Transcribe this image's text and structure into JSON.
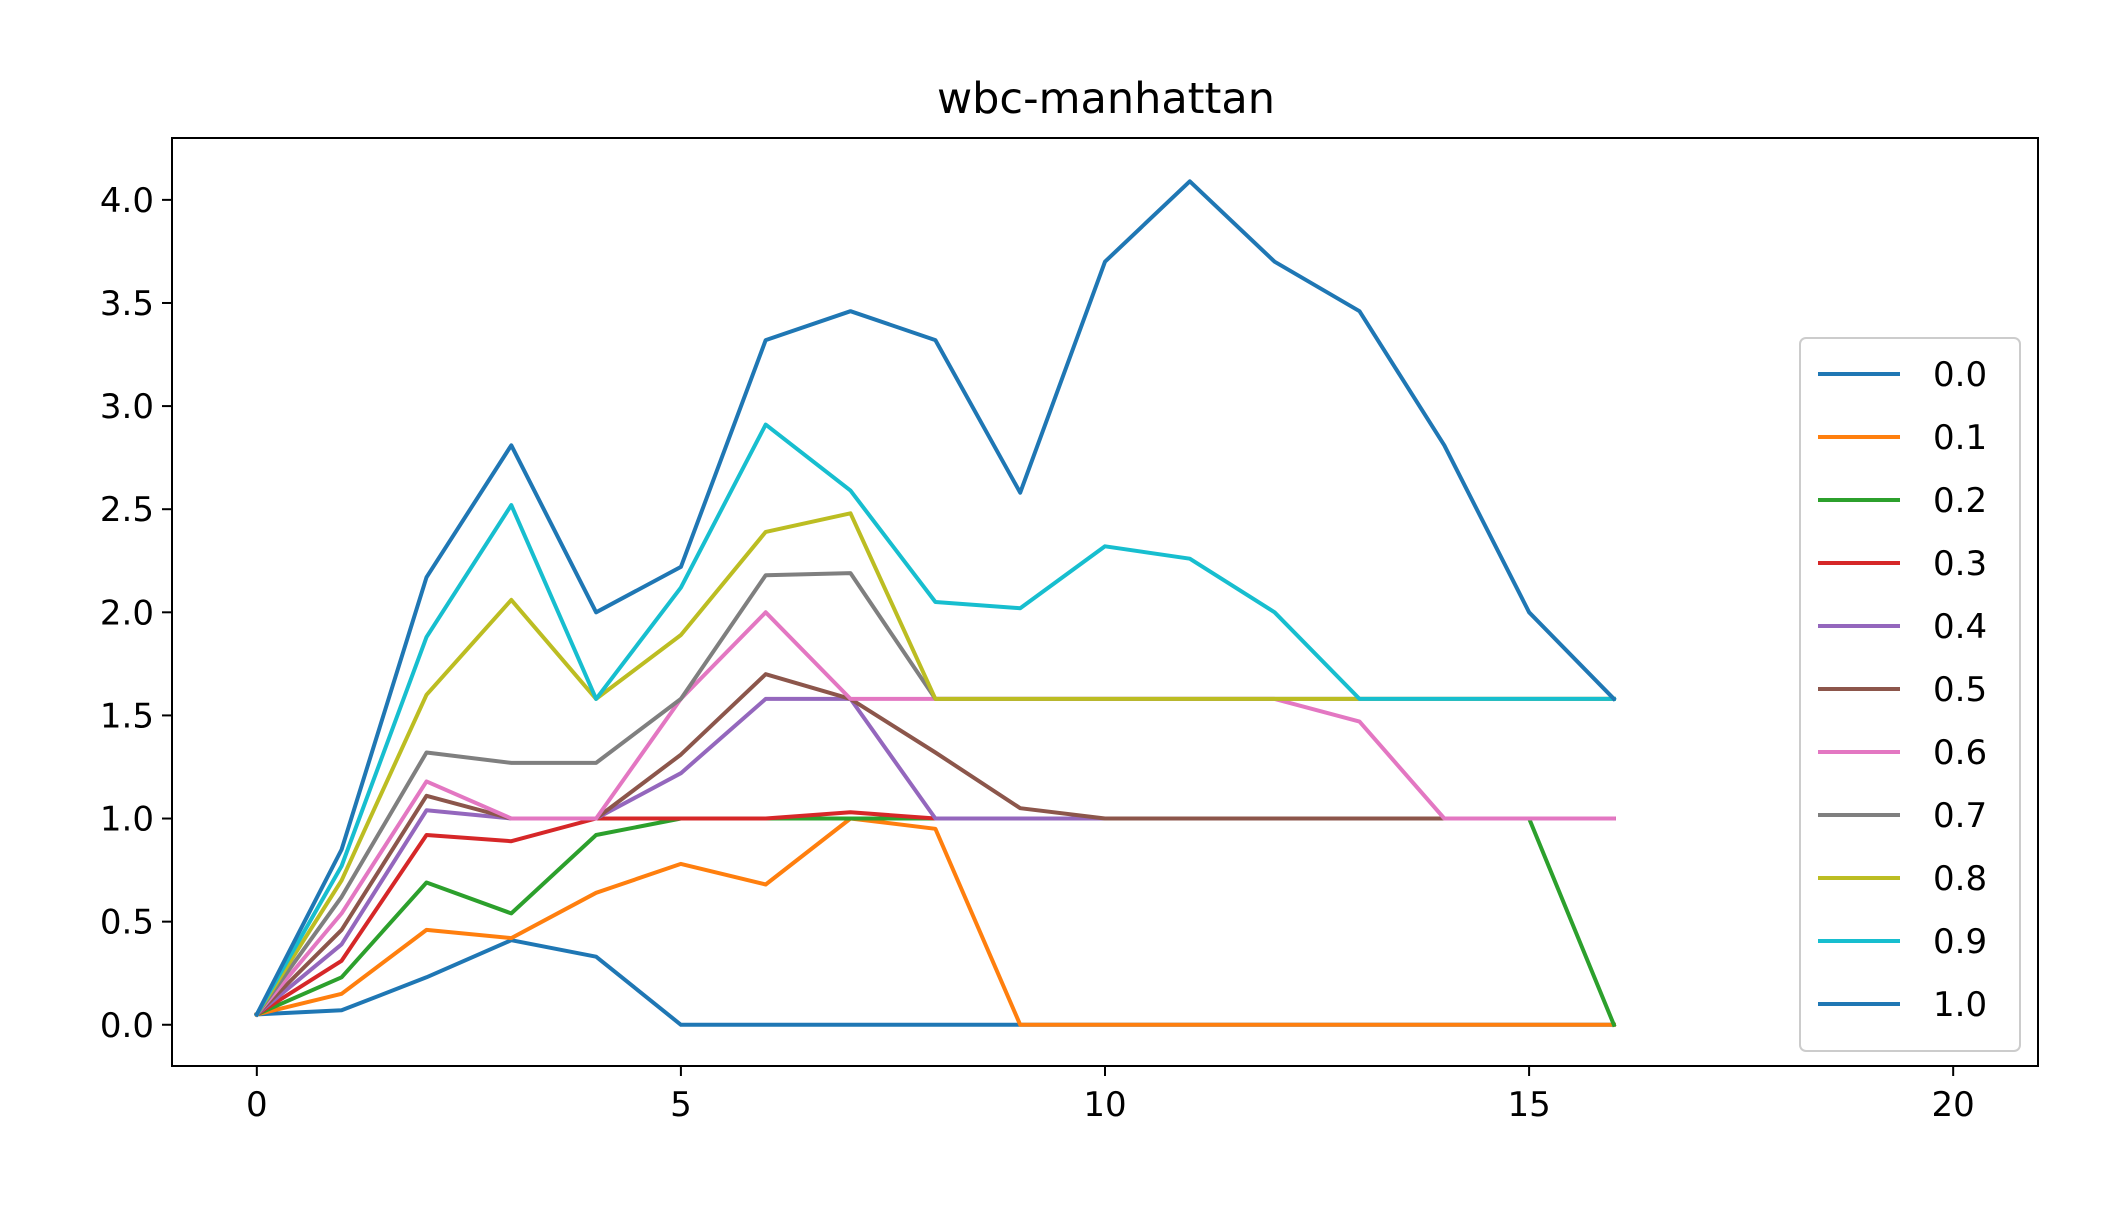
{
  "chart_data": {
    "type": "line",
    "title": "wbc-manhattan",
    "xlabel": "",
    "ylabel": "",
    "xlim": [
      -1,
      21
    ],
    "ylim": [
      -0.2,
      4.3
    ],
    "xticks": [
      0,
      5,
      10,
      15,
      20
    ],
    "xtick_labels": [
      "0",
      "5",
      "10",
      "15",
      "20"
    ],
    "yticks": [
      0.0,
      0.5,
      1.0,
      1.5,
      2.0,
      2.5,
      3.0,
      3.5,
      4.0
    ],
    "ytick_labels": [
      "0.0",
      "0.5",
      "1.0",
      "1.5",
      "2.0",
      "2.5",
      "3.0",
      "3.5",
      "4.0"
    ],
    "grid": false,
    "legend_position": "right",
    "x": [
      0,
      1,
      2,
      3,
      4,
      5,
      6,
      7,
      8,
      9,
      10,
      11,
      12,
      13,
      14,
      15,
      16
    ],
    "series": [
      {
        "name": "0.0",
        "color": "#1f77b4",
        "values": [
          0.05,
          0.07,
          0.23,
          0.41,
          0.33,
          0.0,
          0.0,
          0.0,
          0.0,
          0.0,
          0.0,
          0.0,
          0.0,
          0.0,
          0.0,
          0.0,
          0.0
        ]
      },
      {
        "name": "0.1",
        "color": "#ff7f0e",
        "values": [
          0.05,
          0.15,
          0.46,
          0.42,
          0.64,
          0.78,
          0.68,
          1.0,
          0.95,
          0.0,
          0.0,
          0.0,
          0.0,
          0.0,
          0.0,
          0.0,
          0.0
        ]
      },
      {
        "name": "0.2",
        "color": "#2ca02c",
        "values": [
          0.05,
          0.23,
          0.69,
          0.54,
          0.92,
          1.0,
          1.0,
          1.0,
          1.0,
          1.0,
          1.0,
          1.0,
          1.0,
          1.0,
          1.0,
          1.0,
          0.0
        ]
      },
      {
        "name": "0.3",
        "color": "#d62728",
        "values": [
          0.05,
          0.31,
          0.92,
          0.89,
          1.0,
          1.0,
          1.0,
          1.03,
          1.0,
          1.0,
          1.0,
          1.0,
          1.0,
          1.0,
          1.0,
          1.0,
          1.0
        ]
      },
      {
        "name": "0.4",
        "color": "#9467bd",
        "values": [
          0.05,
          0.39,
          1.04,
          1.0,
          1.0,
          1.22,
          1.58,
          1.58,
          1.0,
          1.0,
          1.0,
          1.0,
          1.0,
          1.0,
          1.0,
          1.0,
          1.0
        ]
      },
      {
        "name": "0.5",
        "color": "#8c564b",
        "values": [
          0.05,
          0.46,
          1.11,
          1.0,
          1.0,
          1.31,
          1.7,
          1.58,
          1.32,
          1.05,
          1.0,
          1.0,
          1.0,
          1.0,
          1.0,
          1.0,
          1.0
        ]
      },
      {
        "name": "0.6",
        "color": "#e377c2",
        "values": [
          0.05,
          0.54,
          1.18,
          1.0,
          1.0,
          1.58,
          2.0,
          1.58,
          1.58,
          1.58,
          1.58,
          1.58,
          1.58,
          1.47,
          1.0,
          1.0,
          1.0
        ]
      },
      {
        "name": "0.7",
        "color": "#7f7f7f",
        "values": [
          0.05,
          0.62,
          1.32,
          1.27,
          1.27,
          1.58,
          2.18,
          2.19,
          1.58,
          1.58,
          1.58,
          1.58,
          1.58,
          1.58,
          1.58,
          1.58,
          1.58
        ]
      },
      {
        "name": "0.8",
        "color": "#bcbd22",
        "values": [
          0.05,
          0.7,
          1.6,
          2.06,
          1.58,
          1.89,
          2.39,
          2.48,
          1.58,
          1.58,
          1.58,
          1.58,
          1.58,
          1.58,
          1.58,
          1.58,
          1.58
        ]
      },
      {
        "name": "0.9",
        "color": "#17becf",
        "values": [
          0.05,
          0.77,
          1.88,
          2.52,
          1.58,
          2.12,
          2.91,
          2.59,
          2.05,
          2.02,
          2.32,
          2.26,
          2.0,
          1.58,
          1.58,
          1.58,
          1.58
        ]
      },
      {
        "name": "1.0",
        "color": "#1f77b4",
        "values": [
          0.05,
          0.85,
          2.17,
          2.81,
          2.0,
          2.22,
          3.32,
          3.46,
          3.32,
          2.58,
          3.7,
          4.09,
          3.7,
          3.46,
          2.81,
          2.0,
          1.58
        ]
      }
    ]
  }
}
